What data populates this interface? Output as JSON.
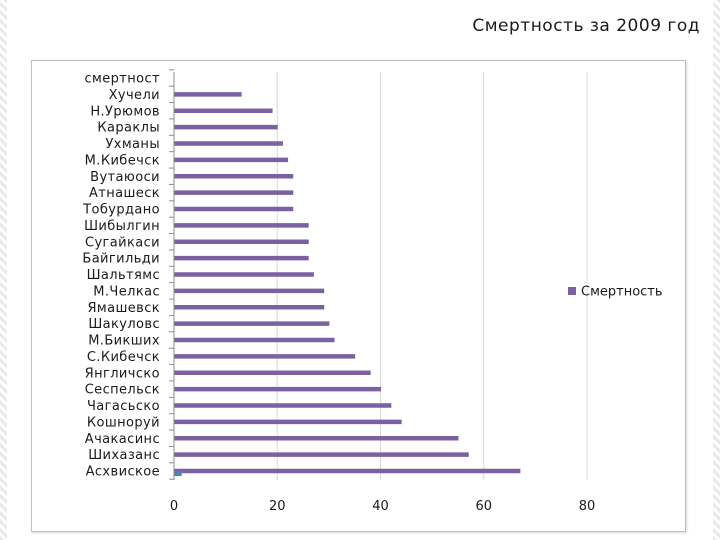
{
  "slide": {
    "title": "Смертность за 2009 год"
  },
  "chart_data": {
    "type": "bar",
    "orientation": "horizontal",
    "title": "",
    "xlabel": "",
    "ylabel": "",
    "xlim": [
      0,
      80
    ],
    "xticks": [
      0,
      20,
      40,
      60,
      80
    ],
    "grid": true,
    "legend_position": "right",
    "categories": [
      "смертност",
      "Хучели",
      "Н.Урюмов",
      "Караклы",
      "Ухманы",
      "М.Кибечск",
      "Вутаюоси",
      "Атнашеск",
      "Тобурдано",
      "Шибылгин",
      "Сугайкаси",
      "Байгильди",
      "Шальтямс",
      "М.Челкас",
      "Ямашевск",
      "Шакуловс",
      "М.Бикших",
      "С.Кибечск",
      "Янгличско",
      "Сеспельск",
      "Чагасьско",
      "Кошноруй",
      "Ачакасинс",
      "Шихазанс",
      "Асхвиское"
    ],
    "series": [
      {
        "name": "Смертность",
        "color": "#7b61a1",
        "values": [
          0,
          13,
          19,
          20,
          21,
          22,
          23,
          23,
          23,
          26,
          26,
          26,
          27,
          29,
          29,
          30,
          31,
          35,
          38,
          40,
          42,
          44,
          55,
          57,
          67
        ]
      }
    ],
    "highlight_marker": {
      "category": "Асхвиское",
      "value": 1,
      "color": "#4f81bd"
    }
  }
}
